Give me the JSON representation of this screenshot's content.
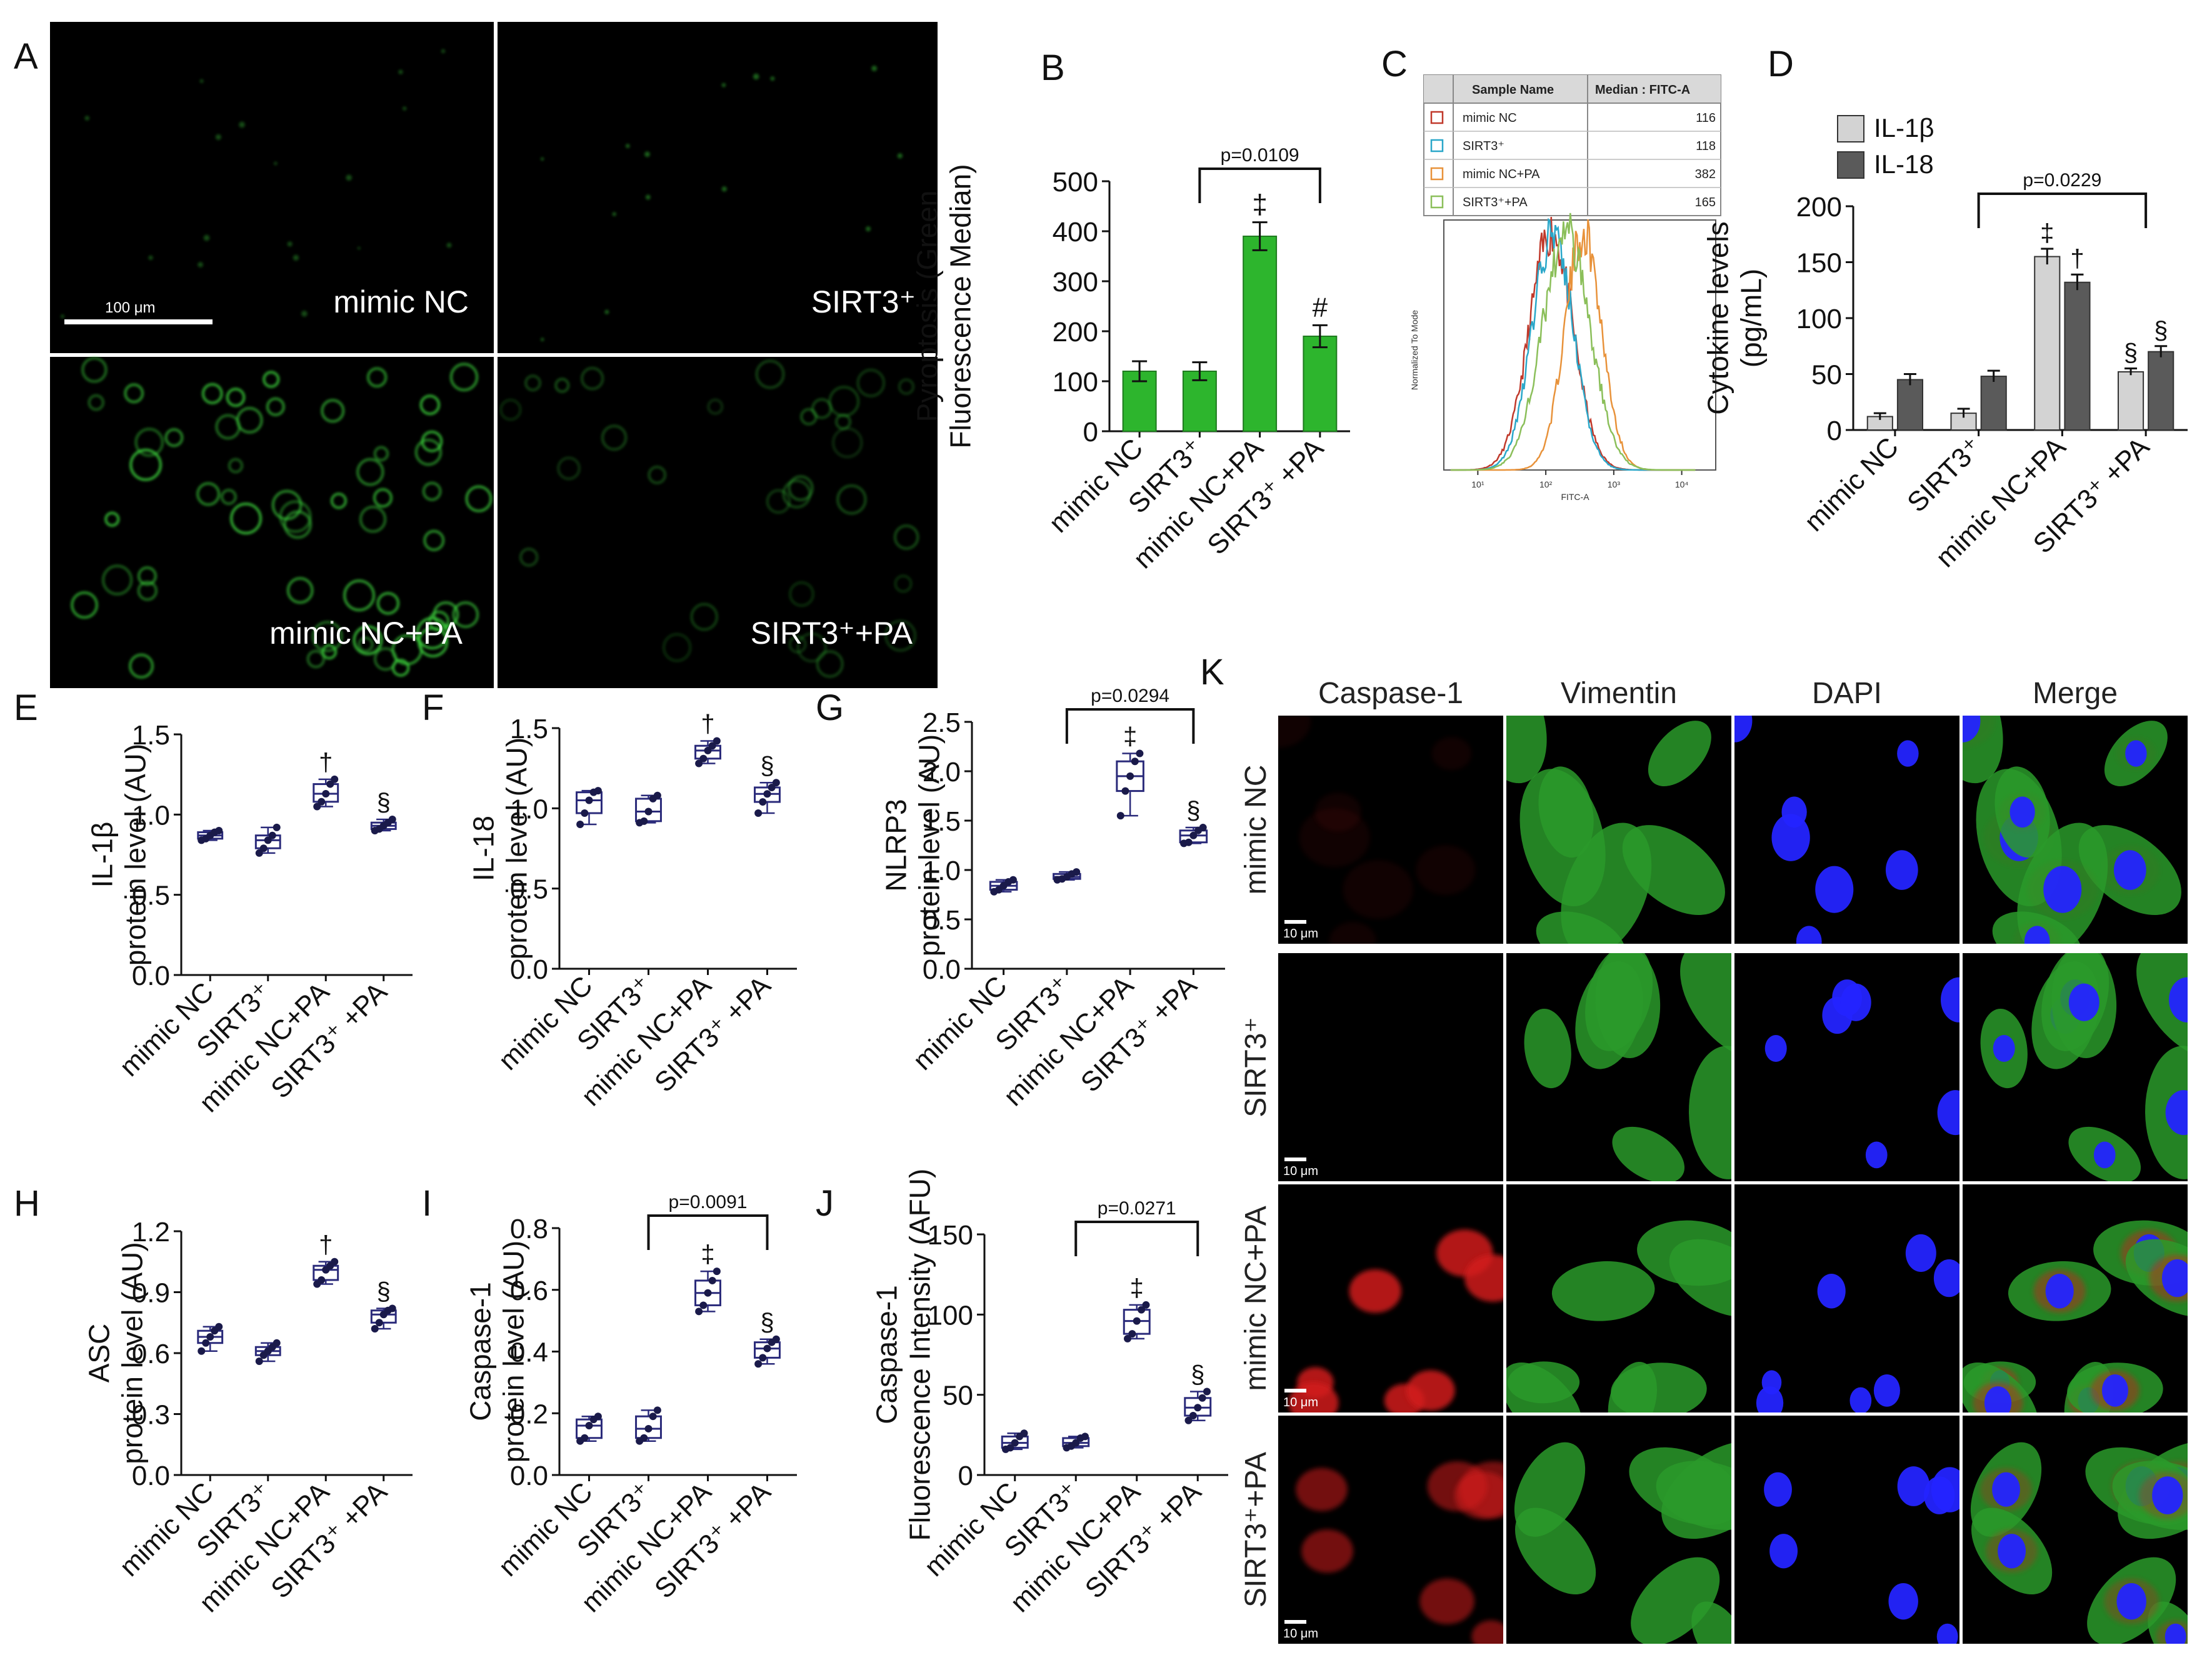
{
  "panels": {
    "a": "A",
    "b": "B",
    "c": "C",
    "d": "D",
    "e": "E",
    "f": "F",
    "g": "G",
    "h": "H",
    "i": "I",
    "j": "J",
    "k": "K"
  },
  "groups": [
    "mimic NC",
    "SIRT3⁺",
    "mimic NC+PA",
    "SIRT3⁺ +PA"
  ],
  "micro": {
    "labels": [
      "mimic NC",
      "SIRT3⁺",
      "mimic NC+PA",
      "SIRT3⁺+PA"
    ],
    "scale_bar": "100 μm"
  },
  "flow": {
    "header": [
      "Sample Name",
      "Median : FITC-A"
    ],
    "rows": [
      {
        "name": "mimic NC",
        "value": "116",
        "color": "#c0392b"
      },
      {
        "name": "SIRT3⁺",
        "value": "118",
        "color": "#2aa7c9"
      },
      {
        "name": "mimic NC+PA",
        "value": "382",
        "color": "#e8923a"
      },
      {
        "name": "SIRT3⁺+PA",
        "value": "165",
        "color": "#8bbf5a"
      }
    ],
    "ylabel": "Normalized To Mode",
    "xlabel": "FITC-A",
    "xticks": [
      "10¹",
      "10²",
      "10³",
      "10⁴"
    ]
  },
  "if_panel": {
    "columns": [
      "Caspase-1",
      "Vimentin",
      "DAPI",
      "Merge"
    ],
    "rows": [
      "mimic NC",
      "SIRT3⁺",
      "mimic NC+PA",
      "SIRT3⁺+PA"
    ],
    "scale_bar": "10 μm"
  },
  "chart_data": [
    {
      "id": "B",
      "type": "bar",
      "categories": [
        "mimic NC",
        "SIRT3⁺",
        "mimic NC+PA",
        "SIRT3⁺ +PA"
      ],
      "values": [
        120,
        120,
        390,
        190
      ],
      "errors": [
        20,
        18,
        28,
        22
      ],
      "ylabel": "Pyroptosis (Green Fluorescence Median)",
      "ylim": [
        0,
        500
      ],
      "yticks": [
        0,
        100,
        200,
        300,
        400,
        500
      ],
      "marks": [
        "",
        "",
        "‡",
        "#"
      ],
      "bracket": {
        "from": 1,
        "to": 3,
        "label": "p=0.0109"
      },
      "color": "#2db52d"
    },
    {
      "id": "D",
      "type": "bar",
      "categories": [
        "mimic NC",
        "SIRT3⁺",
        "mimic NC+PA",
        "SIRT3⁺ +PA"
      ],
      "series": [
        {
          "name": "IL-1β",
          "values": [
            12,
            15,
            155,
            52
          ],
          "errors": [
            3,
            4,
            7,
            3
          ],
          "color": "#d3d3d3",
          "marks": [
            "",
            "",
            "‡",
            "§"
          ]
        },
        {
          "name": "IL-18",
          "values": [
            45,
            48,
            132,
            70
          ],
          "errors": [
            5,
            5,
            7,
            5
          ],
          "color": "#5a5a5a",
          "marks": [
            "",
            "",
            "†",
            "§"
          ]
        }
      ],
      "ylabel": "Cytokine levels (pg/mL)",
      "ylim": [
        0,
        200
      ],
      "yticks": [
        0,
        50,
        100,
        150,
        200
      ],
      "bracket": {
        "from": 1,
        "to": 3,
        "label": "p=0.0229"
      }
    },
    {
      "id": "E",
      "type": "box",
      "categories": [
        "mimic NC",
        "SIRT3⁺",
        "mimic NC+PA",
        "SIRT3⁺ +PA"
      ],
      "boxes": [
        {
          "min": 0.84,
          "q1": 0.85,
          "med": 0.87,
          "q3": 0.89,
          "max": 0.9
        },
        {
          "min": 0.76,
          "q1": 0.79,
          "med": 0.84,
          "q3": 0.87,
          "max": 0.92
        },
        {
          "min": 1.05,
          "q1": 1.08,
          "med": 1.13,
          "q3": 1.19,
          "max": 1.22
        },
        {
          "min": 0.9,
          "q1": 0.91,
          "med": 0.93,
          "q3": 0.95,
          "max": 0.97
        }
      ],
      "ylabel": "IL-1β protein level (AU)",
      "ylim": [
        0,
        1.5
      ],
      "yticks": [
        "0.0",
        "0.5",
        "1.0",
        "1.5"
      ],
      "marks": [
        "",
        "",
        "†",
        "§"
      ]
    },
    {
      "id": "F",
      "type": "box",
      "categories": [
        "mimic NC",
        "SIRT3⁺",
        "mimic NC+PA",
        "SIRT3⁺ +PA"
      ],
      "boxes": [
        {
          "min": 0.9,
          "q1": 0.97,
          "med": 1.05,
          "q3": 1.1,
          "max": 1.11
        },
        {
          "min": 0.91,
          "q1": 0.92,
          "med": 0.98,
          "q3": 1.06,
          "max": 1.08
        },
        {
          "min": 1.28,
          "q1": 1.31,
          "med": 1.36,
          "q3": 1.39,
          "max": 1.42
        },
        {
          "min": 0.97,
          "q1": 1.04,
          "med": 1.09,
          "q3": 1.13,
          "max": 1.16
        }
      ],
      "ylabel": "IL-18 protein level (AU)",
      "ylim": [
        0,
        1.5
      ],
      "yticks": [
        "0.0",
        "0.5",
        "1.0",
        "1.5"
      ],
      "marks": [
        "",
        "",
        "†",
        "§"
      ]
    },
    {
      "id": "G",
      "type": "box",
      "categories": [
        "mimic NC",
        "SIRT3⁺",
        "mimic NC+PA",
        "SIRT3⁺ +PA"
      ],
      "boxes": [
        {
          "min": 0.78,
          "q1": 0.8,
          "med": 0.84,
          "q3": 0.88,
          "max": 0.9
        },
        {
          "min": 0.9,
          "q1": 0.91,
          "med": 0.93,
          "q3": 0.96,
          "max": 0.98
        },
        {
          "min": 1.55,
          "q1": 1.8,
          "med": 1.95,
          "q3": 2.1,
          "max": 2.18
        },
        {
          "min": 1.27,
          "q1": 1.28,
          "med": 1.35,
          "q3": 1.4,
          "max": 1.43
        }
      ],
      "ylabel": "NLRP3 protein level (AU)",
      "ylim": [
        0,
        2.5
      ],
      "yticks": [
        "0.0",
        "0.5",
        "1.0",
        "1.5",
        "2.0",
        "2.5"
      ],
      "marks": [
        "",
        "",
        "‡",
        "§"
      ],
      "bracket": {
        "from": 1,
        "to": 3,
        "label": "p=0.0294"
      }
    },
    {
      "id": "H",
      "type": "box",
      "categories": [
        "mimic NC",
        "SIRT3⁺",
        "mimic NC+PA",
        "SIRT3⁺ +PA"
      ],
      "boxes": [
        {
          "min": 0.61,
          "q1": 0.65,
          "med": 0.68,
          "q3": 0.71,
          "max": 0.73
        },
        {
          "min": 0.56,
          "q1": 0.59,
          "med": 0.61,
          "q3": 0.63,
          "max": 0.65
        },
        {
          "min": 0.94,
          "q1": 0.96,
          "med": 1.01,
          "q3": 1.03,
          "max": 1.05
        },
        {
          "min": 0.72,
          "q1": 0.75,
          "med": 0.79,
          "q3": 0.81,
          "max": 0.82
        }
      ],
      "ylabel": "ASC protein level (AU)",
      "ylim": [
        0,
        1.2
      ],
      "yticks": [
        "0.0",
        "0.3",
        "0.6",
        "0.9",
        "1.2"
      ],
      "marks": [
        "",
        "",
        "†",
        "§"
      ]
    },
    {
      "id": "I",
      "type": "box",
      "categories": [
        "mimic NC",
        "SIRT3⁺",
        "mimic NC+PA",
        "SIRT3⁺ +PA"
      ],
      "boxes": [
        {
          "min": 0.11,
          "q1": 0.12,
          "med": 0.16,
          "q3": 0.18,
          "max": 0.19
        },
        {
          "min": 0.11,
          "q1": 0.12,
          "med": 0.15,
          "q3": 0.19,
          "max": 0.21
        },
        {
          "min": 0.53,
          "q1": 0.55,
          "med": 0.59,
          "q3": 0.63,
          "max": 0.66
        },
        {
          "min": 0.36,
          "q1": 0.38,
          "med": 0.41,
          "q3": 0.43,
          "max": 0.44
        }
      ],
      "ylabel": "Caspase-1 protein level (AU)",
      "ylim": [
        0,
        0.8
      ],
      "yticks": [
        "0.0",
        "0.2",
        "0.4",
        "0.6",
        "0.8"
      ],
      "marks": [
        "",
        "",
        "‡",
        "§"
      ],
      "bracket": {
        "from": 1,
        "to": 3,
        "label": "p=0.0091"
      }
    },
    {
      "id": "J",
      "type": "box",
      "categories": [
        "mimic NC",
        "SIRT3⁺",
        "mimic NC+PA",
        "SIRT3⁺ +PA"
      ],
      "boxes": [
        {
          "min": 16,
          "q1": 17,
          "med": 20,
          "q3": 24,
          "max": 26
        },
        {
          "min": 17,
          "q1": 18,
          "med": 20,
          "q3": 23,
          "max": 24
        },
        {
          "min": 85,
          "q1": 88,
          "med": 96,
          "q3": 103,
          "max": 106
        },
        {
          "min": 34,
          "q1": 37,
          "med": 42,
          "q3": 48,
          "max": 52
        }
      ],
      "ylabel": "Caspase-1 Fluorescence Intensity (AFU)",
      "ylim": [
        0,
        150
      ],
      "yticks": [
        "0",
        "50",
        "100",
        "150"
      ],
      "marks": [
        "",
        "",
        "‡",
        "§"
      ],
      "bracket": {
        "from": 1,
        "to": 3,
        "label": "p=0.0271"
      }
    }
  ]
}
